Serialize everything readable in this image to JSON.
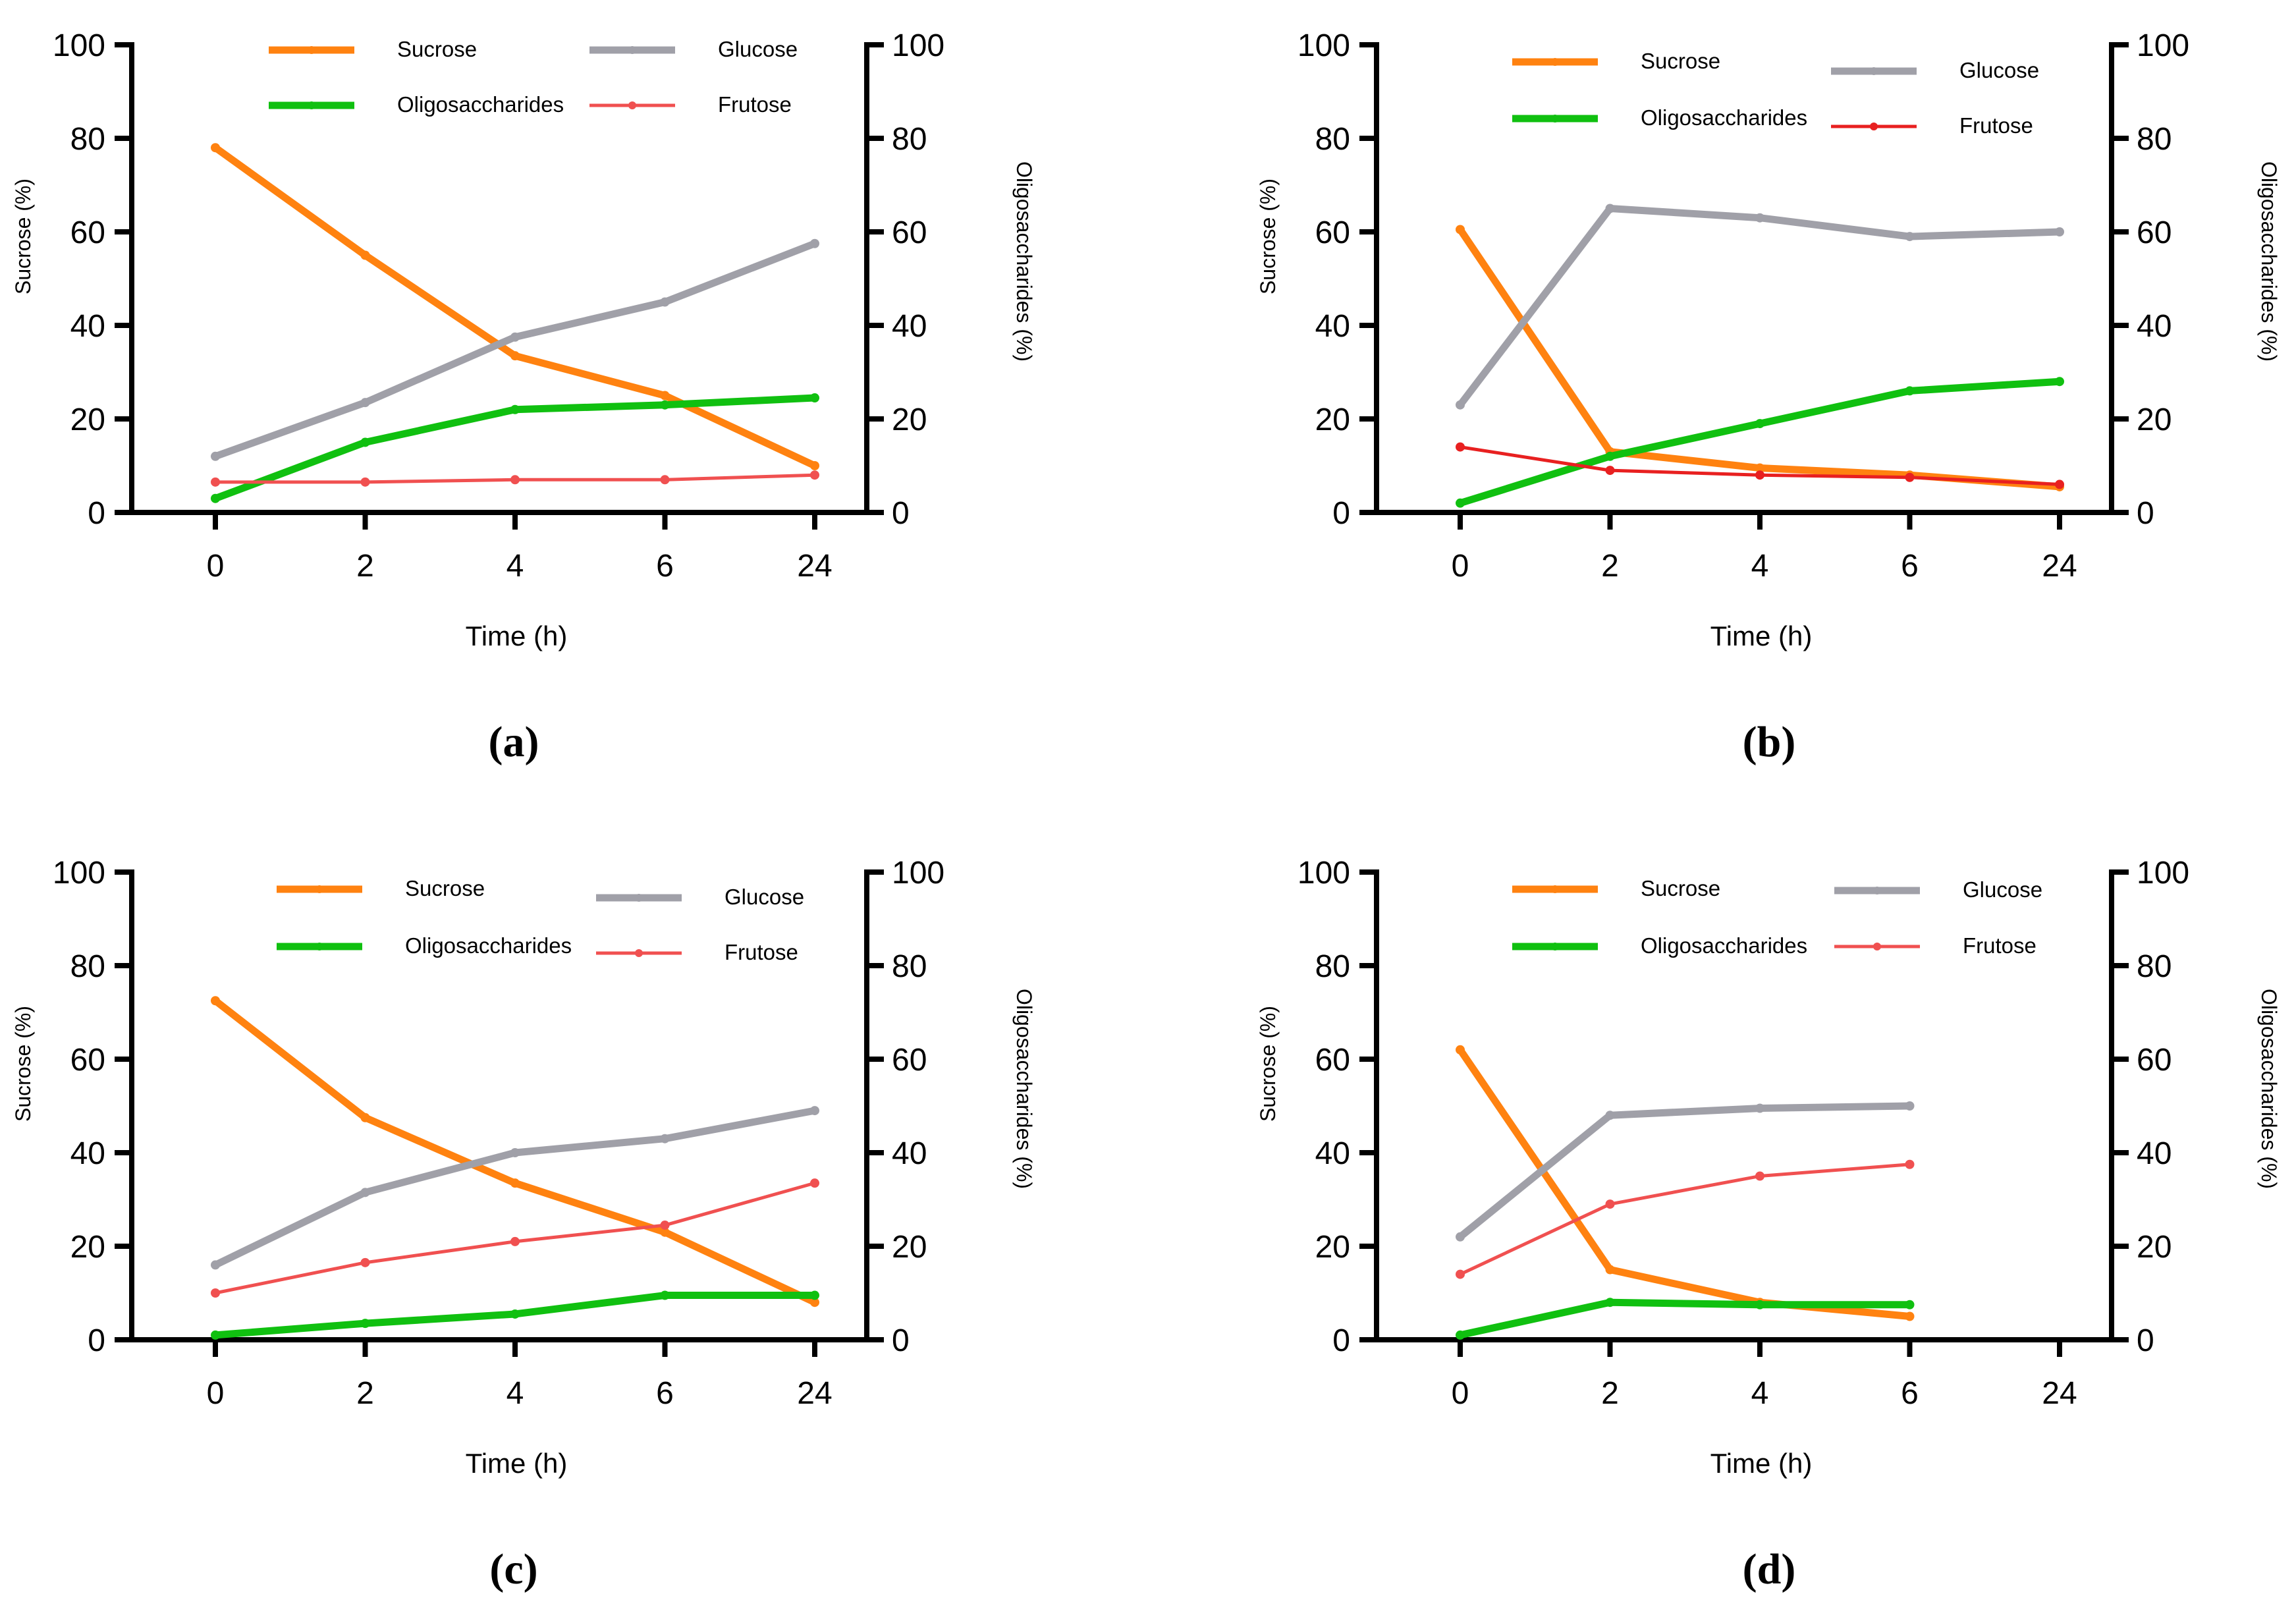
{
  "colors": {
    "sucrose": "#ff8210",
    "oligosaccharides": "#10c010",
    "glucose": "#a0a0a8",
    "frutose": "#f05050",
    "frutose_b": "#e82020",
    "axis": "#000000"
  },
  "chart_data": [
    {
      "type": "line",
      "caption": "(a)",
      "categories": [
        "0",
        "2",
        "4",
        "6",
        "24"
      ],
      "xlabel": "Time (h)",
      "ylabel": "Sucrose (%)",
      "y2label": "Oligosaccharides (%)",
      "ylim": [
        0,
        100
      ],
      "y2lim": [
        0,
        100
      ],
      "yticks": [
        "0",
        "20",
        "40",
        "60",
        "80",
        "100"
      ],
      "legend_position": "top",
      "series": [
        {
          "name": "Sucrose",
          "key": "sucrose",
          "values": [
            78,
            55,
            33.5,
            25,
            10
          ]
        },
        {
          "name": "Glucose",
          "key": "glucose",
          "values": [
            12,
            23.5,
            37.5,
            45,
            57.5
          ]
        },
        {
          "name": "Oligosaccharides",
          "key": "oligosaccharides",
          "values": [
            3,
            15,
            22,
            23,
            24.5
          ]
        },
        {
          "name": "Frutose",
          "key": "frutose",
          "values": [
            6.5,
            6.5,
            7,
            7,
            8
          ]
        }
      ]
    },
    {
      "type": "line",
      "caption": "(b)",
      "categories": [
        "0",
        "2",
        "4",
        "6",
        "24"
      ],
      "xlabel": "Time (h)",
      "ylabel": "Sucrose (%)",
      "y2label": "Oligosaccharides (%)",
      "ylim": [
        0,
        100
      ],
      "y2lim": [
        0,
        100
      ],
      "yticks": [
        "0",
        "20",
        "40",
        "60",
        "80",
        "100"
      ],
      "legend_position": "top",
      "series": [
        {
          "name": "Sucrose",
          "key": "sucrose",
          "values": [
            60.5,
            13,
            9.5,
            8,
            5.5
          ]
        },
        {
          "name": "Glucose",
          "key": "glucose",
          "values": [
            23,
            65,
            63,
            59,
            60
          ]
        },
        {
          "name": "Oligosaccharides",
          "key": "oligosaccharides",
          "values": [
            2,
            12,
            19,
            26,
            28
          ]
        },
        {
          "name": "Frutose",
          "key": "frutose_b",
          "values": [
            14,
            9,
            8,
            7.5,
            6
          ]
        }
      ]
    },
    {
      "type": "line",
      "caption": "(c)",
      "categories": [
        "0",
        "2",
        "4",
        "6",
        "24"
      ],
      "xlabel": "Time (h)",
      "ylabel": "Sucrose (%)",
      "y2label": "Oligosaccharides (%)",
      "ylim": [
        0,
        100
      ],
      "y2lim": [
        0,
        100
      ],
      "yticks": [
        "0",
        "20",
        "40",
        "60",
        "80",
        "100"
      ],
      "legend_position": "top",
      "series": [
        {
          "name": "Sucrose",
          "key": "sucrose",
          "values": [
            72.5,
            47.5,
            33.5,
            23,
            8
          ]
        },
        {
          "name": "Glucose",
          "key": "glucose",
          "values": [
            16,
            31.5,
            40,
            43,
            49
          ]
        },
        {
          "name": "Frutose",
          "key": "frutose",
          "values": [
            10,
            16.5,
            21,
            24.5,
            33.5
          ]
        },
        {
          "name": "Oligosaccharides",
          "key": "oligosaccharides",
          "values": [
            1,
            3.5,
            5.5,
            9.5,
            9.5
          ]
        }
      ]
    },
    {
      "type": "line",
      "caption": "(d)",
      "categories": [
        "0",
        "2",
        "4",
        "6",
        "24"
      ],
      "xlabel": "Time (h)",
      "ylabel": "Sucrose (%)",
      "y2label": "Oligosaccharides (%)",
      "ylim": [
        0,
        100
      ],
      "y2lim": [
        0,
        100
      ],
      "yticks": [
        "0",
        "20",
        "40",
        "60",
        "80",
        "100"
      ],
      "legend_position": "top",
      "series": [
        {
          "name": "Sucrose",
          "key": "sucrose",
          "values": [
            62,
            15,
            8,
            5,
            null
          ]
        },
        {
          "name": "Glucose",
          "key": "glucose",
          "values": [
            22,
            48,
            49.5,
            50,
            null
          ]
        },
        {
          "name": "Frutose",
          "key": "frutose",
          "values": [
            14,
            29,
            35,
            37.5,
            null
          ]
        },
        {
          "name": "Oligosaccharides",
          "key": "oligosaccharides",
          "values": [
            1,
            8,
            7.5,
            7.5,
            null
          ]
        }
      ]
    }
  ]
}
